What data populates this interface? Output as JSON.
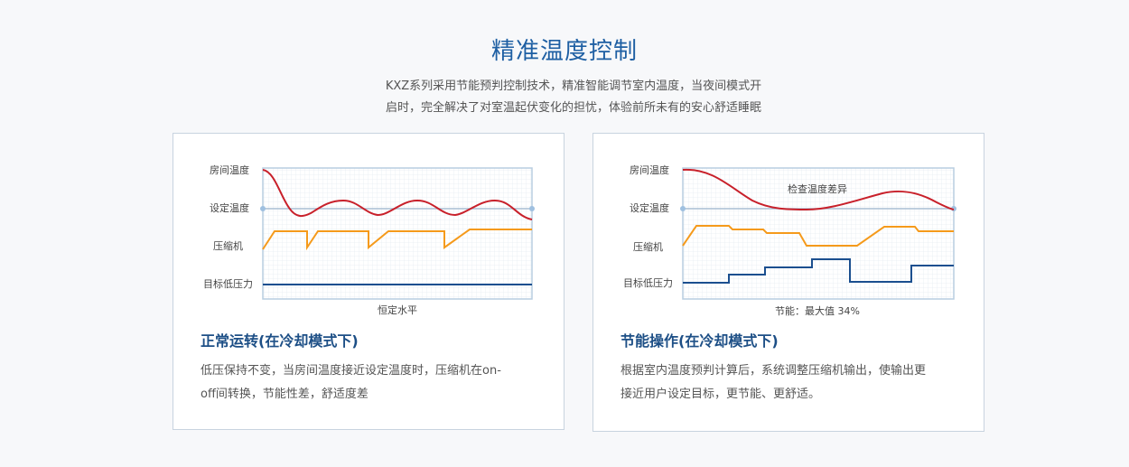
{
  "header": {
    "title": "精准温度控制",
    "intro_line1": "KXZ系列采用节能预判控制技术，精准智能调节室内温度，当夜间模式开",
    "intro_line2": "启时，完全解决了对室温起伏变化的担忧，体验前所未有的安心舒适睡眠"
  },
  "cards": [
    {
      "chart": {
        "labels": {
          "room_temp": "房间温度",
          "set_temp": "设定温度",
          "compressor": "压缩机",
          "low_pressure": "目标低压力"
        },
        "caption": "恒定水平",
        "colors": {
          "room_temp": "#c8202a",
          "compressor": "#f59a1b",
          "pressure": "#1b4f8f",
          "set_line": "#a9bdd3"
        }
      },
      "title": "正常运转(在冷却模式下)",
      "desc_line1": "低压保持不变，当房间温度接近设定温度时，压缩机在on-",
      "desc_line2": "off间转换，节能性差，舒适度差"
    },
    {
      "chart": {
        "labels": {
          "room_temp": "房间温度",
          "set_temp": "设定温度",
          "compressor": "压缩机",
          "low_pressure": "目标低压力"
        },
        "annotation": "检查温度差异",
        "caption": "节能：最大值 34%",
        "colors": {
          "room_temp": "#c8202a",
          "compressor": "#f59a1b",
          "pressure": "#1b4f8f",
          "set_line": "#a9bdd3"
        }
      },
      "title": "节能操作(在冷却模式下)",
      "desc_line1": "根据室内温度预判计算后，系统调整压缩机输出，使输出更",
      "desc_line2": "接近用户设定目标，更节能、更舒适。"
    }
  ]
}
